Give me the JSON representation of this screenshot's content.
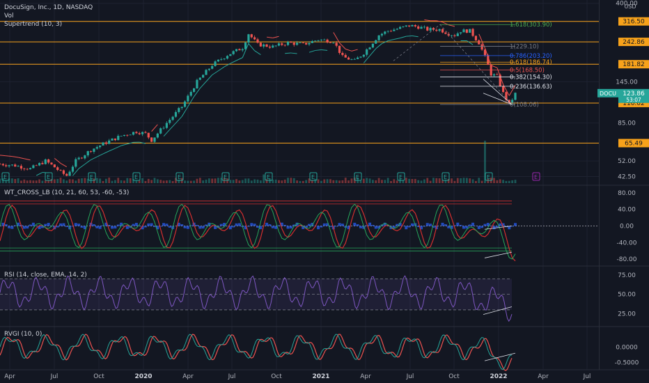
{
  "header": {
    "symbol_line": "DocuSign, Inc., 1D, NASDAQ",
    "vol_label": "Vol",
    "supertrend_label": "Supertrend (10, 3)"
  },
  "pane_labels": {
    "wt": "WT_CROSS_LB (10, 21, 60, 53, -60, -53)",
    "rsi": "RSI (14, close, EMA, 14, 2)",
    "rvgi": "RVGI (10, 0)"
  },
  "colors": {
    "background": "#131722",
    "up_candle": "#26a69a",
    "down_candle": "#ef5350",
    "supertrend_up": "#26a69a",
    "supertrend_down": "#ef5350",
    "hline": "#f7a21b",
    "hline_label_bg": "#f7a21b",
    "ticker_badge": "#26a69a",
    "wt_line_1": "#26a65b",
    "wt_line_2": "#d32f2f",
    "wt_area": "#2962ff",
    "rsi_line": "#7e57c2",
    "rvgi_line": "#26a69a",
    "rvgi_signal": "#ef5350",
    "divergence": "#e0e3eb"
  },
  "chart_data": [
    {
      "id": "price",
      "type": "candlestick",
      "scale": "log",
      "x_axis_labels": [
        "Apr",
        "Jul",
        "Oct",
        "2020",
        "Apr",
        "Jul",
        "Oct",
        "2021",
        "Apr",
        "Jul",
        "Oct",
        "2022",
        "Apr",
        "Jul"
      ],
      "y_ticks": [
        400.0,
        316.5,
        242.86,
        181.82,
        145.0,
        110.02,
        85.0,
        65.49,
        52.0,
        42.5
      ],
      "y_tick_labels": [
        "400.00",
        "",
        "",
        "",
        "145.00",
        "",
        "85.00",
        "",
        "52.00",
        "42.50"
      ],
      "horizontal_levels": [
        {
          "value": 316.5,
          "label": "316.50"
        },
        {
          "value": 242.86,
          "label": "242.86"
        },
        {
          "value": 181.82,
          "label": "181.82"
        },
        {
          "value": 110.02,
          "label": "110.02"
        },
        {
          "value": 65.49,
          "label": "65.49"
        }
      ],
      "fib_levels": [
        {
          "value": 303.9,
          "label": "1.618(303.90)",
          "color": "#4caf50"
        },
        {
          "value": 229.1,
          "label": "1(229.10)",
          "color": "#787b86"
        },
        {
          "value": 203.2,
          "label": "0.786(203.20)",
          "color": "#2962ff"
        },
        {
          "value": 186.74,
          "label": "0.618(186.74)",
          "color": "#f7a21b"
        },
        {
          "value": 168.5,
          "label": "0.5(168.50)",
          "color": "#ef5350"
        },
        {
          "value": 154.3,
          "label": "0.382(154.30)",
          "color": "#e0e3eb"
        },
        {
          "value": 136.63,
          "label": "0.236(136.63)",
          "color": "#e0e3eb"
        },
        {
          "value": 108.06,
          "label": "0(108.06)",
          "color": "#787b86"
        }
      ],
      "current_price": {
        "symbol": "DOCU",
        "value": "123.86",
        "sub": "53:07"
      },
      "axis_unit": "USD",
      "price_path": [
        [
          0,
          50
        ],
        [
          5,
          49
        ],
        [
          10,
          47
        ],
        [
          15,
          52
        ],
        [
          18,
          48
        ],
        [
          20,
          45
        ],
        [
          22,
          43
        ],
        [
          25,
          52
        ],
        [
          30,
          60
        ],
        [
          35,
          66
        ],
        [
          40,
          72
        ],
        [
          45,
          76
        ],
        [
          48,
          74
        ],
        [
          50,
          68
        ],
        [
          55,
          85
        ],
        [
          60,
          105
        ],
        [
          65,
          145
        ],
        [
          70,
          180
        ],
        [
          75,
          205
        ],
        [
          80,
          225
        ],
        [
          82,
          270
        ],
        [
          85,
          235
        ],
        [
          90,
          228
        ],
        [
          95,
          240
        ],
        [
          100,
          235
        ],
        [
          105,
          250
        ],
        [
          110,
          245
        ],
        [
          113,
          200
        ],
        [
          117,
          190
        ],
        [
          120,
          210
        ],
        [
          125,
          265
        ],
        [
          128,
          280
        ],
        [
          132,
          290
        ],
        [
          135,
          300
        ],
        [
          138,
          295
        ],
        [
          141,
          285
        ],
        [
          145,
          285
        ],
        [
          148,
          270
        ],
        [
          150,
          265
        ],
        [
          152,
          280
        ],
        [
          155,
          280
        ],
        [
          158,
          240
        ],
        [
          160,
          200
        ],
        [
          162,
          160
        ],
        [
          164,
          155
        ],
        [
          166,
          125
        ],
        [
          168,
          108
        ],
        [
          170,
          124
        ]
      ]
    },
    {
      "id": "wt_cross",
      "type": "line",
      "y_ticks": [
        80.0,
        40.0,
        0.0,
        -40.0,
        -80.0
      ],
      "y_tick_labels": [
        "80.00",
        "40.00",
        "0.00",
        "-40.00",
        "-80.00"
      ],
      "reference_lines": [
        60,
        53,
        -53,
        -60
      ]
    },
    {
      "id": "rsi",
      "type": "line",
      "y_ticks": [
        75.0,
        50.0,
        25.0
      ],
      "y_tick_labels": [
        "75.00",
        "50.00",
        "25.00"
      ],
      "band": [
        30,
        70
      ]
    },
    {
      "id": "rvgi",
      "type": "line",
      "y_ticks": [
        0.0,
        -0.5
      ],
      "y_tick_labels": [
        "0.0000",
        "-0.5000"
      ]
    }
  ]
}
